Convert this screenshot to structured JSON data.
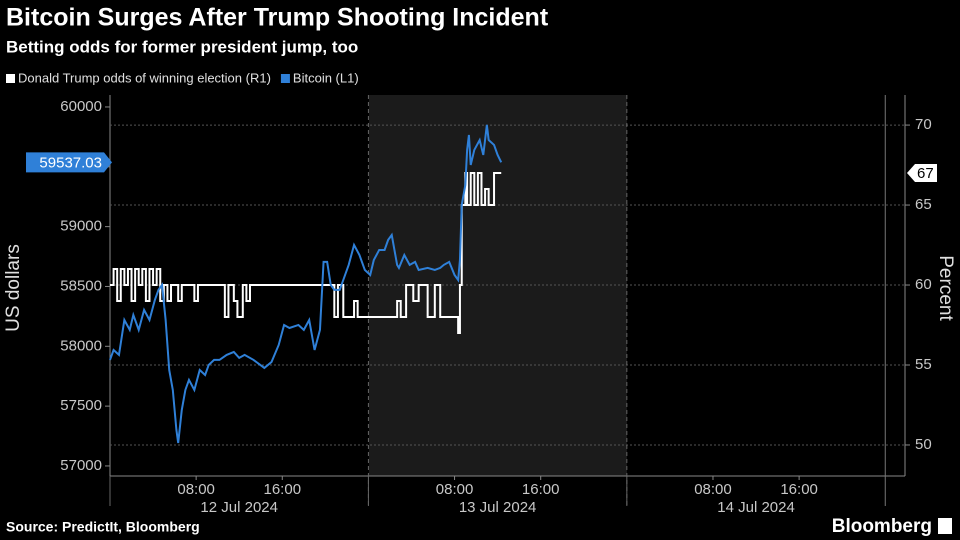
{
  "chart_data": {
    "type": "line",
    "title": "Bitcoin Surges After Trump Shooting Incident",
    "subtitle": "Betting odds for former president jump, too",
    "ylabel": "US dollars",
    "y2label": "Percent",
    "source": "Source: PredictIt, Bloomberg",
    "brand": "Bloomberg",
    "xlim": [
      "2024-07-12 00:00",
      "2024-07-15 01:50"
    ],
    "xticks": [
      {
        "value": "2024-07-12 08:00",
        "label": "08:00"
      },
      {
        "value": "2024-07-12 16:00",
        "label": "16:00"
      },
      {
        "value": "2024-07-13 08:00",
        "label": "08:00"
      },
      {
        "value": "2024-07-13 16:00",
        "label": "16:00"
      },
      {
        "value": "2024-07-14 08:00",
        "label": "08:00"
      },
      {
        "value": "2024-07-14 16:00",
        "label": "16:00"
      }
    ],
    "date_labels": [
      {
        "value": "2024-07-12",
        "label": "12 Jul 2024"
      },
      {
        "value": "2024-07-13",
        "label": "13 Jul 2024"
      },
      {
        "value": "2024-07-14",
        "label": "14 Jul 2024"
      }
    ],
    "ylim": [
      56916,
      60100
    ],
    "yticks": [
      57000,
      57500,
      58000,
      58500,
      59000,
      59500,
      60000
    ],
    "y2lim": [
      48.06,
      71.88
    ],
    "y2ticks": [
      50,
      55,
      60,
      65,
      70
    ],
    "grid": "y2",
    "legend": "top-left",
    "series": [
      {
        "name": "Bitcoin (L1)",
        "color": "#2f80d8",
        "axis": "y",
        "x": [
          "2024-07-12 00:00",
          "2024-07-12 00:20",
          "2024-07-12 00:50",
          "2024-07-12 01:20",
          "2024-07-12 01:50",
          "2024-07-12 02:10",
          "2024-07-12 02:40",
          "2024-07-12 03:10",
          "2024-07-12 03:40",
          "2024-07-12 04:10",
          "2024-07-12 04:30",
          "2024-07-12 04:50",
          "2024-07-12 05:10",
          "2024-07-12 05:30",
          "2024-07-12 05:50",
          "2024-07-12 06:10",
          "2024-07-12 06:20",
          "2024-07-12 06:40",
          "2024-07-12 07:00",
          "2024-07-12 07:20",
          "2024-07-12 07:50",
          "2024-07-12 08:20",
          "2024-07-12 08:50",
          "2024-07-12 09:10",
          "2024-07-12 09:40",
          "2024-07-12 10:10",
          "2024-07-12 10:50",
          "2024-07-12 11:30",
          "2024-07-12 12:00",
          "2024-07-12 12:30",
          "2024-07-12 13:20",
          "2024-07-12 14:20",
          "2024-07-12 15:00",
          "2024-07-12 15:40",
          "2024-07-12 16:10",
          "2024-07-12 16:40",
          "2024-07-12 17:30",
          "2024-07-12 18:00",
          "2024-07-12 18:30",
          "2024-07-12 19:00",
          "2024-07-12 19:30",
          "2024-07-12 19:50",
          "2024-07-12 20:10",
          "2024-07-12 20:30",
          "2024-07-12 20:50",
          "2024-07-12 21:20",
          "2024-07-12 21:50",
          "2024-07-12 22:10",
          "2024-07-12 22:40",
          "2024-07-12 23:10",
          "2024-07-12 23:40",
          "2024-07-13 00:10",
          "2024-07-13 00:30",
          "2024-07-13 01:00",
          "2024-07-13 01:30",
          "2024-07-13 01:50",
          "2024-07-13 02:10",
          "2024-07-13 02:40",
          "2024-07-13 02:50",
          "2024-07-13 03:20",
          "2024-07-13 03:50",
          "2024-07-13 04:20",
          "2024-07-13 04:40",
          "2024-07-13 05:30",
          "2024-07-13 06:10",
          "2024-07-13 06:40",
          "2024-07-13 07:00",
          "2024-07-13 07:30",
          "2024-07-13 08:00",
          "2024-07-13 08:20",
          "2024-07-13 08:30",
          "2024-07-13 08:40",
          "2024-07-13 09:00",
          "2024-07-13 09:10",
          "2024-07-13 09:20",
          "2024-07-13 09:30",
          "2024-07-13 09:50",
          "2024-07-13 10:20",
          "2024-07-13 10:40",
          "2024-07-13 11:00",
          "2024-07-13 11:10",
          "2024-07-13 11:40",
          "2024-07-13 12:00",
          "2024-07-13 12:20"
        ],
        "values": [
          57886,
          57969,
          57928,
          58220,
          58137,
          58262,
          58137,
          58304,
          58220,
          58387,
          58471,
          58513,
          58220,
          57802,
          57635,
          57301,
          57192,
          57468,
          57635,
          57719,
          57635,
          57802,
          57760,
          57844,
          57886,
          57886,
          57928,
          57953,
          57903,
          57928,
          57886,
          57819,
          57869,
          58011,
          58178,
          58153,
          58178,
          58137,
          58220,
          57969,
          58137,
          58705,
          58705,
          58513,
          58471,
          58471,
          58596,
          58680,
          58847,
          58763,
          58638,
          58596,
          58721,
          58805,
          58805,
          58889,
          58930,
          58680,
          58655,
          58763,
          58680,
          58705,
          58638,
          58655,
          58638,
          58655,
          58680,
          58705,
          58596,
          58554,
          58721,
          59181,
          59348,
          59641,
          59766,
          59515,
          59641,
          59724,
          59599,
          59850,
          59724,
          59683,
          59599,
          59537.03
        ]
      },
      {
        "name": "Donald Trump odds of winning election (R1)",
        "color": "#ffffff",
        "axis": "y2",
        "step": true,
        "x": [
          "2024-07-12 00:00",
          "2024-07-12 00:20",
          "2024-07-12 00:40",
          "2024-07-12 01:00",
          "2024-07-12 01:20",
          "2024-07-12 01:40",
          "2024-07-12 02:00",
          "2024-07-12 02:20",
          "2024-07-12 02:40",
          "2024-07-12 03:00",
          "2024-07-12 03:20",
          "2024-07-12 03:40",
          "2024-07-12 04:00",
          "2024-07-12 04:20",
          "2024-07-12 04:40",
          "2024-07-12 05:00",
          "2024-07-12 05:20",
          "2024-07-12 05:40",
          "2024-07-12 06:20",
          "2024-07-12 06:40",
          "2024-07-12 07:50",
          "2024-07-12 08:10",
          "2024-07-12 10:40",
          "2024-07-12 11:00",
          "2024-07-12 11:30",
          "2024-07-12 11:50",
          "2024-07-12 12:20",
          "2024-07-12 12:40",
          "2024-07-12 13:00",
          "2024-07-12 20:50",
          "2024-07-12 21:10",
          "2024-07-12 21:40",
          "2024-07-12 22:40",
          "2024-07-12 23:00",
          "2024-07-13 02:40",
          "2024-07-13 03:00",
          "2024-07-13 03:30",
          "2024-07-13 04:10",
          "2024-07-13 04:40",
          "2024-07-13 05:30",
          "2024-07-13 06:10",
          "2024-07-13 06:40",
          "2024-07-13 08:20",
          "2024-07-13 08:30",
          "2024-07-13 08:40",
          "2024-07-13 09:00",
          "2024-07-13 09:10",
          "2024-07-13 09:30",
          "2024-07-13 09:50",
          "2024-07-13 10:10",
          "2024-07-13 10:30",
          "2024-07-13 10:50",
          "2024-07-13 11:10",
          "2024-07-13 11:40",
          "2024-07-13 12:20"
        ],
        "values": [
          60,
          61,
          59,
          61,
          60,
          61,
          59,
          61,
          60,
          61,
          59,
          61,
          60,
          61,
          59,
          60,
          59,
          60,
          59,
          60,
          59,
          60,
          58,
          60,
          59,
          58,
          60,
          59,
          60,
          58,
          60,
          58,
          59,
          58,
          59,
          58,
          60,
          59,
          60,
          58,
          60,
          58,
          57,
          60,
          65,
          67,
          65,
          67,
          65,
          67,
          65,
          66,
          65,
          67,
          67
        ]
      }
    ]
  }
}
